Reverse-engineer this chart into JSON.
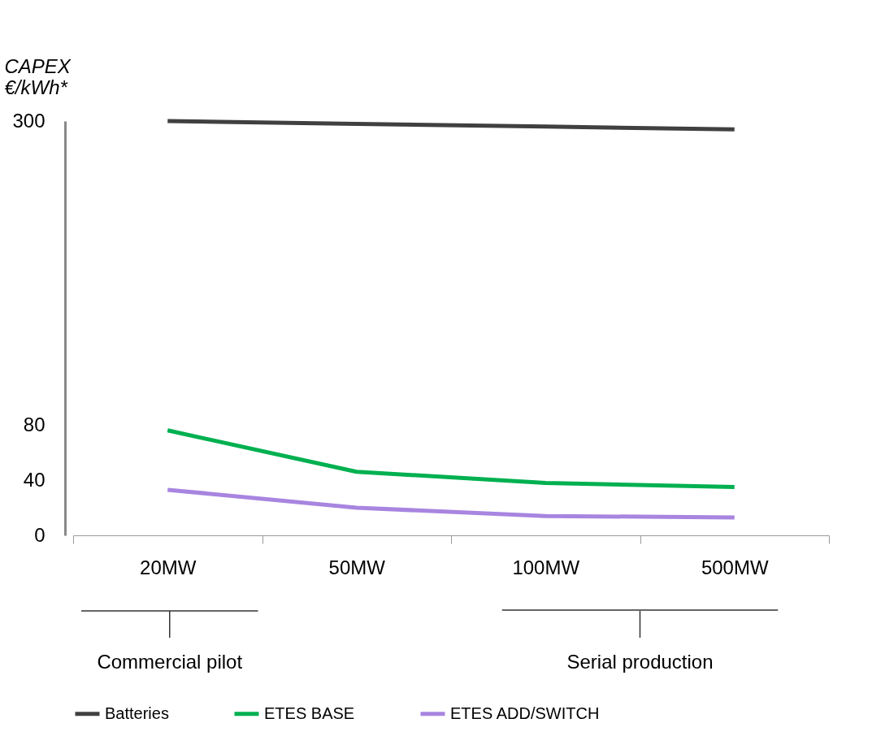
{
  "chart_data": {
    "type": "line",
    "ylabel": "CAPEX\n€/kWh*",
    "categories": [
      "20MW",
      "50MW",
      "100MW",
      "500MW"
    ],
    "series": [
      {
        "name": "Batteries",
        "color": "#404040",
        "values": [
          300,
          298,
          296,
          294
        ]
      },
      {
        "name": "ETES BASE",
        "color": "#00b050",
        "values": [
          76,
          46,
          38,
          35
        ]
      },
      {
        "name": "ETES ADD/SWITCH",
        "color": "#a885e0",
        "values": [
          33,
          20,
          14,
          13
        ]
      }
    ],
    "ylim": [
      0,
      300
    ],
    "yticks": [
      0,
      40,
      80,
      300
    ],
    "grid": false,
    "legend": "bottom",
    "marker": "none",
    "line_style": "solid",
    "annotations": [
      "Commercial pilot",
      "Serial production"
    ]
  }
}
